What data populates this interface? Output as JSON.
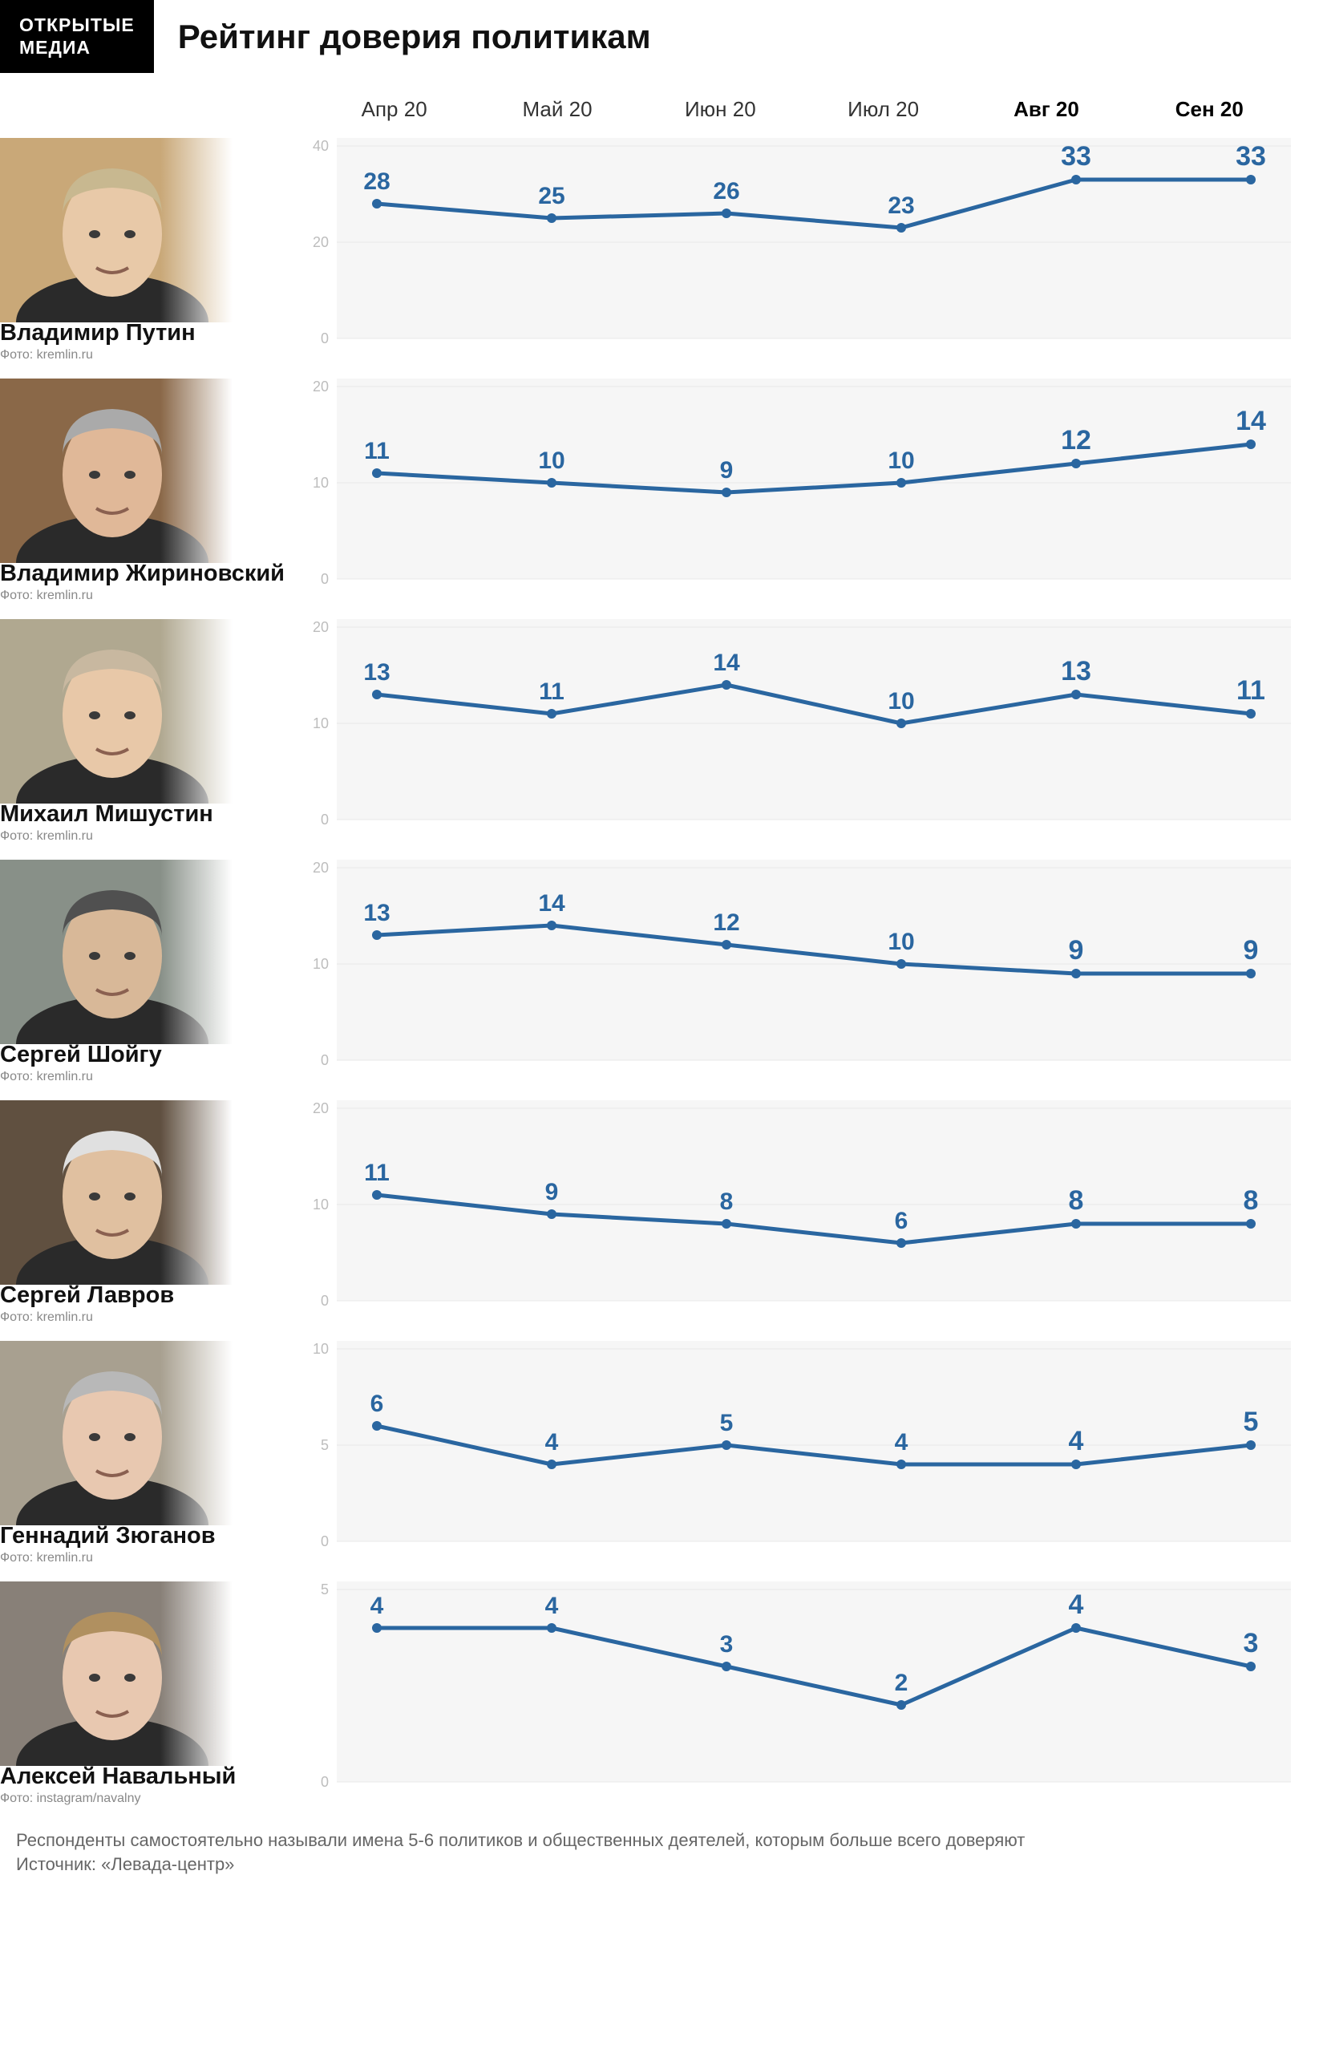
{
  "logo_line1": "ОТКРЫТЫЕ",
  "logo_line2": "МЕДИА",
  "title": "Рейтинг доверия политикам",
  "months": [
    "Апр 20",
    "Май 20",
    "Июн 20",
    "Июл 20",
    "Авг 20",
    "Сен 20"
  ],
  "bold_months": [
    4,
    5
  ],
  "line_color": "#2a66a0",
  "value_color": "#2a66a0",
  "grid_color": "#e8e8e8",
  "tick_color": "#bdbdbd",
  "bg_panel_color": "#f6f6f6",
  "line_width": 5,
  "marker_radius": 6,
  "value_fontsize": 30,
  "value_fontsize_bold": 34,
  "tick_fontsize": 18,
  "name_fontsize": 29,
  "credit_fontsize": 16,
  "rows": [
    {
      "name": "Владимир Путин",
      "credit": "Фото: kremlin.ru",
      "values": [
        28,
        25,
        26,
        23,
        33,
        33
      ],
      "ylim": [
        0,
        40
      ],
      "yticks": [
        0,
        20,
        40
      ],
      "portrait_bg": "#c9a878",
      "skin": "#e8c9a8",
      "hair": "#c8b890"
    },
    {
      "name": "Владимир Жириновский",
      "credit": "Фото: kremlin.ru",
      "values": [
        11,
        10,
        9,
        10,
        12,
        14
      ],
      "ylim": [
        0,
        20
      ],
      "yticks": [
        0,
        10,
        20
      ],
      "portrait_bg": "#8a6848",
      "skin": "#e0b898",
      "hair": "#aaaaaa"
    },
    {
      "name": "Михаил Мишустин",
      "credit": "Фото: kremlin.ru",
      "values": [
        13,
        11,
        14,
        10,
        13,
        11
      ],
      "ylim": [
        0,
        20
      ],
      "yticks": [
        0,
        10,
        20
      ],
      "portrait_bg": "#b0a890",
      "skin": "#e8c8a8",
      "hair": "#c8b8a0"
    },
    {
      "name": "Сергей Шойгу",
      "credit": "Фото: kremlin.ru",
      "values": [
        13,
        14,
        12,
        10,
        9,
        9
      ],
      "ylim": [
        0,
        20
      ],
      "yticks": [
        0,
        10,
        20
      ],
      "portrait_bg": "#889088",
      "skin": "#d8b898",
      "hair": "#505050"
    },
    {
      "name": "Сергей Лавров",
      "credit": "Фото: kremlin.ru",
      "values": [
        11,
        9,
        8,
        6,
        8,
        8
      ],
      "ylim": [
        0,
        20
      ],
      "yticks": [
        0,
        10,
        20
      ],
      "portrait_bg": "#605040",
      "skin": "#e0c0a0",
      "hair": "#e0e0e0"
    },
    {
      "name": "Геннадий Зюганов",
      "credit": "Фото: kremlin.ru",
      "values": [
        6,
        4,
        5,
        4,
        4,
        5
      ],
      "ylim": [
        0,
        10
      ],
      "yticks": [
        0,
        5,
        10
      ],
      "portrait_bg": "#a8a090",
      "skin": "#e8c8b0",
      "hair": "#b8b8b8"
    },
    {
      "name": "Алексей Навальный",
      "credit": "Фото: instagram/navalny",
      "values": [
        4,
        4,
        3,
        2,
        4,
        3
      ],
      "ylim": [
        0,
        5
      ],
      "yticks": [
        0,
        5
      ],
      "portrait_bg": "#888078",
      "skin": "#e8c8b0",
      "hair": "#b09060"
    }
  ],
  "footnote": "Респонденты самостоятельно называли имена 5-6 политиков и общественных деятелей, которым больше всего доверяют",
  "source": "Источник: «Левада-центр»"
}
